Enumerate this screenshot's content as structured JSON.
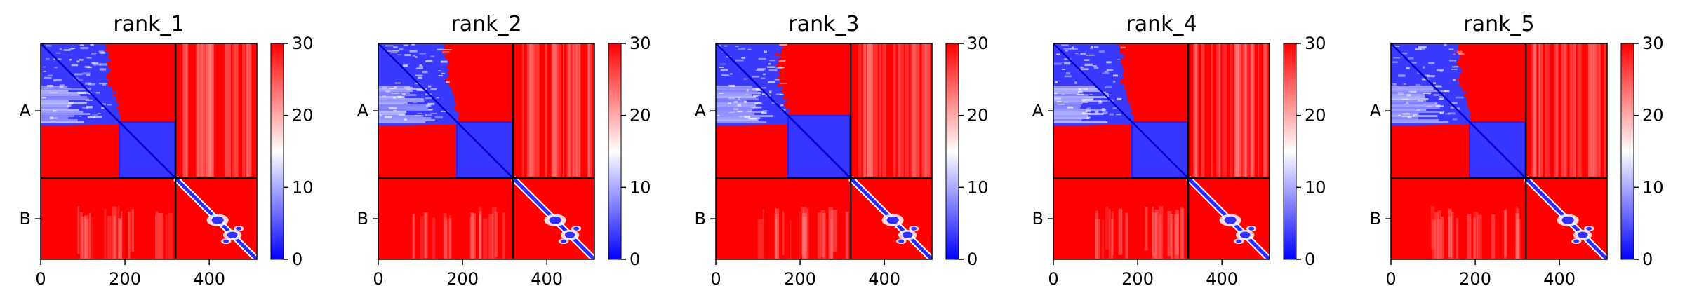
{
  "chart_data": [
    {
      "type": "heatmap",
      "title": "rank_1",
      "xlim": [
        0,
        513
      ],
      "x_ticks": [
        0,
        200,
        400
      ],
      "y_tick_labels": [
        "A",
        "B"
      ],
      "chain_boundary": 320,
      "colorbar": {
        "min": 0,
        "max": 30,
        "ticks": [
          0,
          10,
          20,
          30
        ],
        "colormap": [
          "#0000ff",
          "#ffffff",
          "#ff0000"
        ]
      },
      "blocks": [
        {
          "chain": "A",
          "rows": [
            0,
            320
          ],
          "cols": [
            0,
            320
          ],
          "description": "N-terminal domain 0-~190 low error; C-terminal domain ~190-320 low error; inter-domain high"
        },
        {
          "chain": "B",
          "rows": [
            320,
            513
          ],
          "cols": [
            320,
            513
          ],
          "description": "low error along diagonal"
        }
      ]
    },
    {
      "type": "heatmap",
      "title": "rank_2",
      "xlim": [
        0,
        513
      ],
      "x_ticks": [
        0,
        200,
        400
      ],
      "y_tick_labels": [
        "A",
        "B"
      ],
      "chain_boundary": 320,
      "colorbar": {
        "min": 0,
        "max": 30,
        "ticks": [
          0,
          10,
          20,
          30
        ],
        "colormap": [
          "#0000ff",
          "#ffffff",
          "#ff0000"
        ]
      }
    },
    {
      "type": "heatmap",
      "title": "rank_3",
      "xlim": [
        0,
        513
      ],
      "x_ticks": [
        0,
        200,
        400
      ],
      "y_tick_labels": [
        "A",
        "B"
      ],
      "chain_boundary": 320,
      "colorbar": {
        "min": 0,
        "max": 30,
        "ticks": [
          0,
          10,
          20,
          30
        ],
        "colormap": [
          "#0000ff",
          "#ffffff",
          "#ff0000"
        ]
      }
    },
    {
      "type": "heatmap",
      "title": "rank_4",
      "xlim": [
        0,
        513
      ],
      "x_ticks": [
        0,
        200,
        400
      ],
      "y_tick_labels": [
        "A",
        "B"
      ],
      "chain_boundary": 320,
      "colorbar": {
        "min": 0,
        "max": 30,
        "ticks": [
          0,
          10,
          20,
          30
        ],
        "colormap": [
          "#0000ff",
          "#ffffff",
          "#ff0000"
        ]
      }
    },
    {
      "type": "heatmap",
      "title": "rank_5",
      "xlim": [
        0,
        513
      ],
      "x_ticks": [
        0,
        200,
        400
      ],
      "y_tick_labels": [
        "A",
        "B"
      ],
      "chain_boundary": 320,
      "colorbar": {
        "min": 0,
        "max": 30,
        "ticks": [
          0,
          10,
          20,
          30
        ],
        "colormap": [
          "#0000ff",
          "#ffffff",
          "#ff0000"
        ]
      }
    }
  ]
}
